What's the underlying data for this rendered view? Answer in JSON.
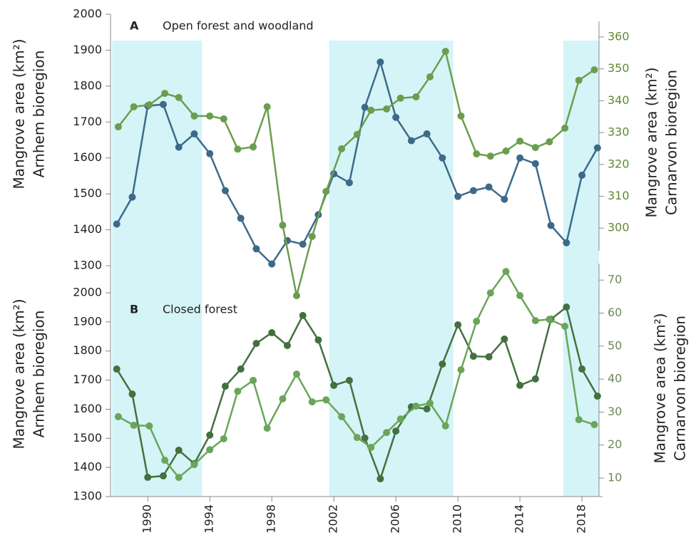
{
  "chart_data": [
    {
      "type": "line",
      "panel_letter": "A",
      "title": "Open forest and woodland",
      "ylabel": [
        "Mangrove area (km²)",
        "Arnhem bioregion"
      ],
      "y2label": [
        "Mangrove area (km²)",
        "Carnarvon bioregion"
      ],
      "xlim": [
        1987.6,
        2019.1
      ],
      "ylim": [
        1300,
        2000
      ],
      "yticks": [
        1300,
        1400,
        1500,
        1600,
        1700,
        1800,
        1900,
        2000
      ],
      "y2lim": [
        293,
        365
      ],
      "y2ticks": [
        300,
        310,
        320,
        330,
        340,
        350,
        360
      ],
      "y2color": "#5f8a30",
      "shaded_periods": [
        [
          1987.7,
          1993.5
        ],
        [
          2001.7,
          2009.7
        ],
        [
          2016.8,
          2019.1
        ]
      ],
      "shade_color": "#d4f4f7",
      "series": [
        {
          "color": "#3d6a8a",
          "x": [
            1988,
            1989,
            1990,
            1991,
            1992,
            1993,
            1994,
            1995,
            1996,
            1997,
            1998,
            1999,
            2000,
            2001,
            2002,
            2003,
            2004,
            2005,
            2006,
            2007,
            2008,
            2009,
            2010,
            2011,
            2012,
            2013,
            2014,
            2015,
            2016,
            2017,
            2018,
            2019
          ],
          "values": [
            1416,
            1491,
            1745,
            1749,
            1630,
            1667,
            1612,
            1509,
            1432,
            1347,
            1305,
            1370,
            1360,
            1442,
            1556,
            1531,
            1741,
            1867,
            1713,
            1648,
            1667,
            1600,
            1493,
            1509,
            1519,
            1485,
            1600,
            1584,
            1412,
            1364,
            1552,
            1628
          ]
        },
        {
          "color": "#6a9e4e",
          "axis": "y2",
          "x": [
            1988.1,
            1989.1,
            1990.1,
            1991.1,
            1992.0,
            1993.0,
            1994.0,
            1994.9,
            1995.8,
            1996.8,
            1997.7,
            1998.7,
            1999.6,
            2000.6,
            2001.5,
            2002.5,
            2003.5,
            2004.4,
            2005.4,
            2006.3,
            2007.3,
            2008.2,
            2009.2,
            2010.2,
            2011.2,
            2012.1,
            2013.1,
            2014.0,
            2015.0,
            2015.9,
            2016.9,
            2017.8,
            2018.8
          ],
          "values": [
            331.8,
            338.1,
            338.7,
            342.3,
            341.0,
            335.2,
            335.2,
            334.3,
            324.8,
            325.5,
            338.1,
            300.9,
            278.8,
            297.4,
            311.5,
            324.9,
            329.4,
            337.0,
            337.4,
            340.8,
            341.2,
            347.5,
            355.5,
            335.2,
            323.3,
            322.6,
            324.2,
            327.3,
            325.3,
            327.1,
            331.4,
            346.4,
            349.7
          ]
        }
      ]
    },
    {
      "type": "line",
      "panel_letter": "B",
      "title": "Closed forest",
      "ylabel": [
        "Mangrove area (km²)",
        "Arnhem bioregion"
      ],
      "y2label": [
        "Mangrove area (km²)",
        "Carnarvon bioregion"
      ],
      "xlim": [
        1987.6,
        2019.1
      ],
      "xticks": [
        1990,
        1994,
        1998,
        2002,
        2006,
        2010,
        2014,
        2018
      ],
      "ylim": [
        1300,
        2000
      ],
      "yticks": [
        1300,
        1400,
        1500,
        1600,
        1700,
        1800,
        1900,
        2000
      ],
      "y2lim": [
        4.4,
        75
      ],
      "y2ticks": [
        10,
        20,
        30,
        40,
        50,
        60,
        70
      ],
      "y2color": "#6f8a55",
      "series": [
        {
          "color": "#44703f",
          "x": [
            1988,
            1989,
            1990,
            1991,
            1992,
            1993,
            1994,
            1995,
            1996,
            1997,
            1998,
            1999,
            2000,
            2001,
            2002,
            2003,
            2004,
            2005,
            2006,
            2007,
            2008,
            2009,
            2010,
            2011,
            2012,
            2013,
            2014,
            2015,
            2016,
            2017,
            2018,
            2019
          ],
          "values": [
            1738,
            1652,
            1366,
            1371,
            1459,
            1413,
            1511,
            1679,
            1738,
            1826,
            1863,
            1819,
            1922,
            1838,
            1682,
            1699,
            1501,
            1361,
            1525,
            1608,
            1601,
            1755,
            1890,
            1782,
            1780,
            1841,
            1682,
            1704,
            1909,
            1951,
            1738,
            1645
          ]
        },
        {
          "color": "#6aa55a",
          "axis": "y2",
          "x": [
            1988.1,
            1989.1,
            1990.1,
            1991.1,
            1992.0,
            1993.0,
            1994.0,
            1994.9,
            1995.8,
            1996.8,
            1997.7,
            1998.7,
            1999.6,
            2000.6,
            2001.5,
            2002.5,
            2003.5,
            2004.4,
            2005.4,
            2006.3,
            2007.3,
            2008.2,
            2009.2,
            2010.2,
            2011.2,
            2012.1,
            2013.1,
            2014.0,
            2015.0,
            2015.9,
            2016.9,
            2017.8,
            2018.8
          ],
          "values": [
            28.6,
            26.0,
            25.8,
            15.4,
            10.2,
            14.1,
            18.6,
            21.9,
            36.3,
            39.6,
            25.1,
            34.0,
            41.5,
            33.1,
            33.7,
            28.6,
            22.3,
            19.3,
            23.8,
            27.9,
            31.8,
            32.7,
            25.8,
            42.8,
            57.5,
            66.1,
            72.6,
            65.3,
            57.7,
            58.1,
            56.0,
            27.7,
            26.2
          ]
        }
      ]
    }
  ]
}
